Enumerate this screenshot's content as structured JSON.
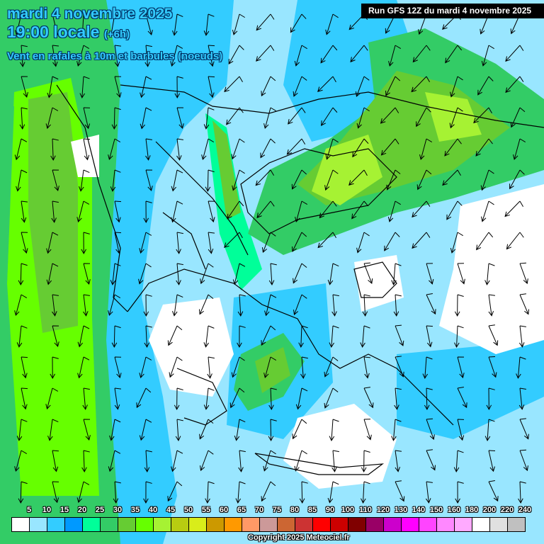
{
  "header": {
    "date": "mardi 4 novembre 2025",
    "time": "19:00 locale",
    "offset": "(+6h)",
    "parameter": "Vent en rafales à 10m et barbules (noeuds)",
    "run": "Run GFS 12Z du mardi 4 novembre 2025"
  },
  "legend": {
    "labels": [
      "5",
      "10",
      "15",
      "20",
      "25",
      "30",
      "35",
      "40",
      "45",
      "50",
      "55",
      "60",
      "65",
      "70",
      "75",
      "80",
      "85",
      "90",
      "100",
      "110",
      "120",
      "130",
      "140",
      "150",
      "160",
      "180",
      "200",
      "220",
      "240"
    ],
    "colors": [
      "#ffffff",
      "#99e6ff",
      "#33ccff",
      "#0099ff",
      "#00ff99",
      "#33cc66",
      "#66cc33",
      "#66ff00",
      "#a6f233",
      "#b8cc11",
      "#d9ed1a",
      "#cc9900",
      "#ff9900",
      "#ff9966",
      "#cc9999",
      "#cc6633",
      "#cc3333",
      "#ff0000",
      "#cc0000",
      "#800000",
      "#990066",
      "#cc00cc",
      "#ff00ff",
      "#ff44ff",
      "#ff88ff",
      "#ffaaff",
      "#ffffff",
      "#e0e0e0",
      "#c0c0c0"
    ]
  },
  "copyright": "Copyright 2025 Meteociel.fr"
}
